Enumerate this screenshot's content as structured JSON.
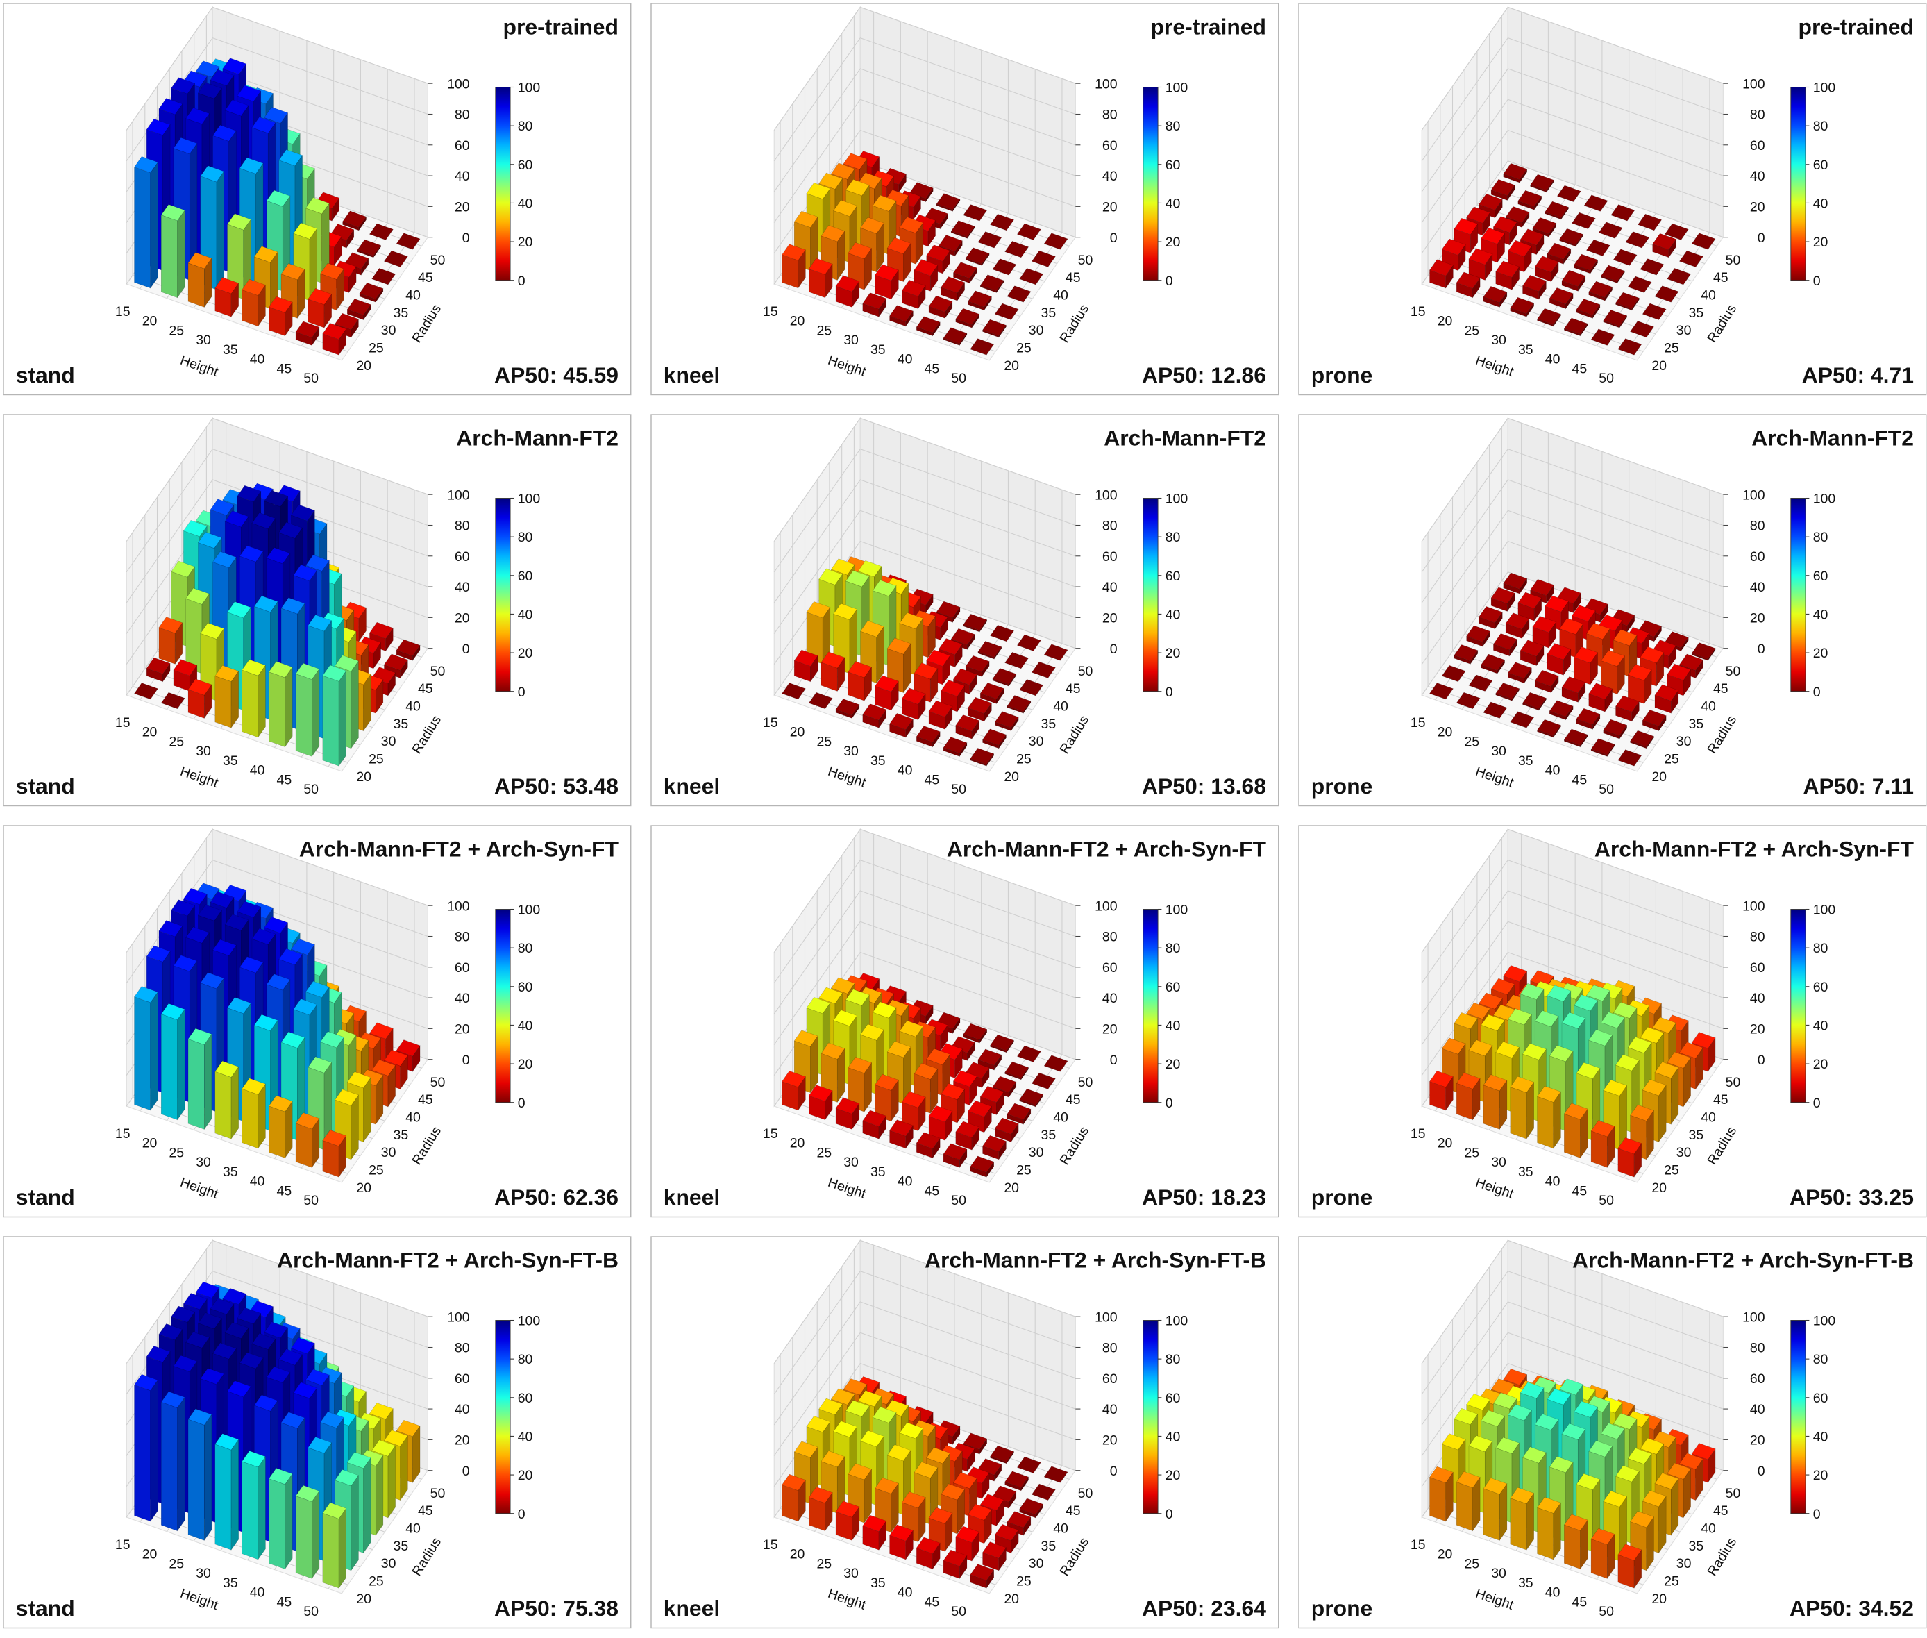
{
  "chart_data": [
    {
      "type": "bar3d",
      "title": "pre-trained",
      "subtitle": "stand",
      "annotation": "AP50: 45.59",
      "x_label": "Height",
      "y_label": "Radius",
      "x": [
        15,
        20,
        25,
        30,
        35,
        40,
        45,
        50
      ],
      "y": [
        20,
        25,
        30,
        35,
        40,
        45,
        50
      ],
      "zlim": [
        0,
        100
      ],
      "zticks": [
        0,
        20,
        40,
        60,
        80,
        100
      ],
      "colormap": "jet_r",
      "colorbar_ticks": [
        0,
        20,
        40,
        60,
        80,
        100
      ],
      "values": [
        [
          75,
          88,
          90,
          92,
          85,
          80,
          70
        ],
        [
          50,
          82,
          90,
          95,
          92,
          88,
          60
        ],
        [
          25,
          70,
          85,
          90,
          88,
          75,
          40
        ],
        [
          15,
          45,
          70,
          85,
          80,
          55,
          20
        ],
        [
          20,
          30,
          55,
          70,
          50,
          15,
          8
        ],
        [
          15,
          25,
          40,
          45,
          12,
          5,
          2
        ],
        [
          5,
          15,
          20,
          10,
          4,
          1,
          0
        ],
        [
          10,
          5,
          3,
          2,
          0,
          0,
          0
        ]
      ]
    },
    {
      "type": "bar3d",
      "title": "pre-trained",
      "subtitle": "kneel",
      "annotation": "AP50: 12.86",
      "x_label": "Height",
      "y_label": "Radius",
      "x": [
        15,
        20,
        25,
        30,
        35,
        40,
        45,
        50
      ],
      "y": [
        20,
        25,
        30,
        35,
        40,
        45,
        50
      ],
      "zlim": [
        0,
        100
      ],
      "zticks": [
        0,
        20,
        40,
        60,
        80,
        100
      ],
      "colormap": "jet_r",
      "colorbar_ticks": [
        0,
        20,
        40,
        60,
        80,
        100
      ],
      "values": [
        [
          18,
          28,
          35,
          30,
          25,
          20,
          10
        ],
        [
          15,
          25,
          30,
          32,
          25,
          15,
          5
        ],
        [
          10,
          20,
          25,
          28,
          20,
          8,
          2
        ],
        [
          5,
          12,
          18,
          20,
          10,
          3,
          1
        ],
        [
          3,
          8,
          10,
          8,
          3,
          1,
          0
        ],
        [
          2,
          4,
          5,
          3,
          1,
          0,
          0
        ],
        [
          1,
          2,
          2,
          1,
          0,
          0,
          0
        ],
        [
          0,
          1,
          0,
          0,
          0,
          0,
          0
        ]
      ]
    },
    {
      "type": "bar3d",
      "title": "pre-trained",
      "subtitle": "prone",
      "annotation": "AP50: 4.71",
      "x_label": "Height",
      "y_label": "Radius",
      "x": [
        15,
        20,
        25,
        30,
        35,
        40,
        45,
        50
      ],
      "y": [
        20,
        25,
        30,
        35,
        40,
        45,
        50
      ],
      "zlim": [
        0,
        100
      ],
      "zticks": [
        0,
        20,
        40,
        60,
        80,
        100
      ],
      "colormap": "jet_r",
      "colorbar_ticks": [
        0,
        20,
        40,
        60,
        80,
        100
      ],
      "values": [
        [
          8,
          10,
          12,
          8,
          5,
          3,
          2
        ],
        [
          6,
          10,
          12,
          8,
          3,
          2,
          1
        ],
        [
          3,
          8,
          10,
          6,
          2,
          1,
          0
        ],
        [
          2,
          5,
          6,
          3,
          1,
          0,
          0
        ],
        [
          1,
          3,
          3,
          2,
          0,
          0,
          0
        ],
        [
          1,
          2,
          2,
          1,
          0,
          0,
          0
        ],
        [
          0,
          1,
          1,
          0,
          0,
          5,
          0
        ],
        [
          0,
          0,
          0,
          0,
          0,
          0,
          0
        ]
      ]
    },
    {
      "type": "bar3d",
      "title": "Arch-Mann-FT2",
      "subtitle": "stand",
      "annotation": "AP50: 53.48",
      "x_label": "Height",
      "y_label": "Radius",
      "x": [
        15,
        20,
        25,
        30,
        35,
        40,
        45,
        50
      ],
      "y": [
        20,
        25,
        30,
        35,
        40,
        45,
        50
      ],
      "zlim": [
        0,
        100
      ],
      "zticks": [
        0,
        20,
        40,
        60,
        80,
        100
      ],
      "colormap": "jet_r",
      "colorbar_ticks": [
        0,
        20,
        40,
        60,
        80,
        100
      ],
      "values": [
        [
          0,
          5,
          20,
          45,
          60,
          55,
          40
        ],
        [
          0,
          10,
          45,
          70,
          80,
          75,
          50
        ],
        [
          15,
          40,
          75,
          90,
          95,
          85,
          55
        ],
        [
          30,
          60,
          85,
          95,
          98,
          90,
          60
        ],
        [
          40,
          70,
          90,
          95,
          95,
          75,
          35
        ],
        [
          45,
          75,
          85,
          80,
          60,
          25,
          15
        ],
        [
          50,
          70,
          60,
          40,
          20,
          10,
          8
        ],
        [
          55,
          50,
          30,
          15,
          8,
          5,
          3
        ]
      ]
    },
    {
      "type": "bar3d",
      "title": "Arch-Mann-FT2",
      "subtitle": "kneel",
      "annotation": "AP50: 13.68",
      "x_label": "Height",
      "y_label": "Radius",
      "x": [
        15,
        20,
        25,
        30,
        35,
        40,
        45,
        50
      ],
      "y": [
        20,
        25,
        30,
        35,
        40,
        45,
        50
      ],
      "zlim": [
        0,
        100
      ],
      "zticks": [
        0,
        20,
        40,
        60,
        80,
        100
      ],
      "colormap": "jet_r",
      "colorbar_ticks": [
        0,
        20,
        40,
        60,
        80,
        100
      ],
      "values": [
        [
          0,
          10,
          30,
          40,
          35,
          25,
          10
        ],
        [
          0,
          15,
          35,
          45,
          40,
          20,
          8
        ],
        [
          2,
          15,
          30,
          45,
          35,
          15,
          5
        ],
        [
          5,
          12,
          25,
          30,
          20,
          8,
          3
        ],
        [
          5,
          10,
          15,
          12,
          8,
          3,
          1
        ],
        [
          3,
          8,
          10,
          6,
          3,
          1,
          0
        ],
        [
          2,
          5,
          5,
          3,
          1,
          0,
          0
        ],
        [
          1,
          2,
          2,
          1,
          0,
          0,
          0
        ]
      ]
    },
    {
      "type": "bar3d",
      "title": "Arch-Mann-FT2",
      "subtitle": "prone",
      "annotation": "AP50: 7.11",
      "x_label": "Height",
      "y_label": "Radius",
      "x": [
        15,
        20,
        25,
        30,
        35,
        40,
        45,
        50
      ],
      "y": [
        20,
        25,
        30,
        35,
        40,
        45,
        50
      ],
      "zlim": [
        0,
        100
      ],
      "zticks": [
        0,
        20,
        40,
        60,
        80,
        100
      ],
      "colormap": "jet_r",
      "colorbar_ticks": [
        0,
        20,
        40,
        60,
        80,
        100
      ],
      "values": [
        [
          0,
          0,
          2,
          3,
          4,
          5,
          3
        ],
        [
          0,
          0,
          2,
          4,
          6,
          8,
          5
        ],
        [
          0,
          1,
          3,
          6,
          10,
          12,
          6
        ],
        [
          0,
          1,
          4,
          10,
          15,
          12,
          5
        ],
        [
          1,
          2,
          6,
          14,
          18,
          12,
          4
        ],
        [
          1,
          3,
          8,
          18,
          20,
          10,
          3
        ],
        [
          1,
          2,
          6,
          15,
          15,
          8,
          2
        ],
        [
          0,
          1,
          3,
          8,
          10,
          5,
          1
        ]
      ]
    },
    {
      "type": "bar3d",
      "title": "Arch-Mann-FT2 + Arch-Syn-FT",
      "subtitle": "stand",
      "annotation": "AP50: 62.36",
      "x_label": "Height",
      "y_label": "Radius",
      "x": [
        15,
        20,
        25,
        30,
        35,
        40,
        45,
        50
      ],
      "y": [
        20,
        25,
        30,
        35,
        40,
        45,
        50
      ],
      "zlim": [
        0,
        100
      ],
      "zticks": [
        0,
        20,
        40,
        60,
        80,
        100
      ],
      "colormap": "jet_r",
      "colorbar_ticks": [
        0,
        20,
        40,
        60,
        80,
        100
      ],
      "values": [
        [
          70,
          85,
          90,
          92,
          88,
          80,
          65
        ],
        [
          65,
          85,
          92,
          95,
          92,
          85,
          65
        ],
        [
          55,
          80,
          90,
          95,
          92,
          80,
          55
        ],
        [
          40,
          70,
          85,
          92,
          88,
          70,
          40
        ],
        [
          35,
          65,
          80,
          85,
          80,
          55,
          30
        ],
        [
          30,
          60,
          70,
          70,
          55,
          30,
          20
        ],
        [
          25,
          50,
          55,
          45,
          30,
          20,
          15
        ],
        [
          20,
          35,
          35,
          25,
          20,
          15,
          10
        ]
      ]
    },
    {
      "type": "bar3d",
      "title": "Arch-Mann-FT2 + Arch-Syn-FT",
      "subtitle": "kneel",
      "annotation": "AP50: 18.23",
      "x_label": "Height",
      "y_label": "Radius",
      "x": [
        15,
        20,
        25,
        30,
        35,
        40,
        45,
        50
      ],
      "y": [
        20,
        25,
        30,
        35,
        40,
        45,
        50
      ],
      "zlim": [
        0,
        100
      ],
      "zticks": [
        0,
        20,
        40,
        60,
        80,
        100
      ],
      "colormap": "jet_r",
      "colorbar_ticks": [
        0,
        20,
        40,
        60,
        80,
        100
      ],
      "values": [
        [
          15,
          30,
          40,
          35,
          30,
          20,
          10
        ],
        [
          12,
          28,
          38,
          40,
          30,
          18,
          8
        ],
        [
          10,
          25,
          35,
          38,
          28,
          15,
          5
        ],
        [
          8,
          20,
          30,
          32,
          20,
          10,
          3
        ],
        [
          8,
          15,
          22,
          20,
          12,
          5,
          2
        ],
        [
          6,
          12,
          15,
          12,
          6,
          3,
          1
        ],
        [
          5,
          8,
          10,
          8,
          3,
          1,
          0
        ],
        [
          3,
          5,
          5,
          3,
          1,
          0,
          0
        ]
      ]
    },
    {
      "type": "bar3d",
      "title": "Arch-Mann-FT2 + Arch-Syn-FT",
      "subtitle": "prone",
      "annotation": "AP50: 33.25",
      "x_label": "Height",
      "y_label": "Radius",
      "x": [
        15,
        20,
        25,
        30,
        35,
        40,
        45,
        50
      ],
      "y": [
        20,
        25,
        30,
        35,
        40,
        45,
        50
      ],
      "zlim": [
        0,
        100
      ],
      "zticks": [
        0,
        20,
        40,
        60,
        80,
        100
      ],
      "colormap": "jet_r",
      "colorbar_ticks": [
        0,
        20,
        40,
        60,
        80,
        100
      ],
      "values": [
        [
          15,
          25,
          30,
          25,
          20,
          18,
          15
        ],
        [
          20,
          30,
          35,
          30,
          25,
          20,
          18
        ],
        [
          25,
          35,
          45,
          50,
          40,
          30,
          20
        ],
        [
          30,
          40,
          50,
          55,
          45,
          35,
          25
        ],
        [
          30,
          45,
          55,
          55,
          50,
          40,
          30
        ],
        [
          25,
          40,
          50,
          50,
          45,
          35,
          25
        ],
        [
          20,
          35,
          40,
          40,
          35,
          30,
          20
        ],
        [
          15,
          25,
          30,
          30,
          25,
          20,
          15
        ]
      ]
    },
    {
      "type": "bar3d",
      "title": "Arch-Mann-FT2 + Arch-Syn-FT-B",
      "subtitle": "stand",
      "annotation": "AP50: 75.38",
      "x_label": "Height",
      "y_label": "Radius",
      "x": [
        15,
        20,
        25,
        30,
        35,
        40,
        45,
        50
      ],
      "y": [
        20,
        25,
        30,
        35,
        40,
        45,
        50
      ],
      "zlim": [
        0,
        100
      ],
      "zticks": [
        0,
        20,
        40,
        60,
        80,
        100
      ],
      "colormap": "jet_r",
      "colorbar_ticks": [
        0,
        20,
        40,
        60,
        80,
        100
      ],
      "values": [
        [
          85,
          92,
          95,
          95,
          92,
          88,
          75
        ],
        [
          80,
          92,
          96,
          97,
          95,
          90,
          75
        ],
        [
          75,
          90,
          95,
          97,
          95,
          88,
          70
        ],
        [
          65,
          88,
          95,
          96,
          92,
          80,
          60
        ],
        [
          60,
          85,
          92,
          92,
          88,
          70,
          50
        ],
        [
          55,
          80,
          88,
          85,
          75,
          55,
          40
        ],
        [
          50,
          70,
          75,
          65,
          50,
          40,
          35
        ],
        [
          45,
          55,
          55,
          45,
          40,
          35,
          30
        ]
      ]
    },
    {
      "type": "bar3d",
      "title": "Arch-Mann-FT2 + Arch-Syn-FT-B",
      "subtitle": "kneel",
      "annotation": "AP50: 23.64",
      "x_label": "Height",
      "y_label": "Radius",
      "x": [
        15,
        20,
        25,
        30,
        35,
        40,
        45,
        50
      ],
      "y": [
        20,
        25,
        30,
        35,
        40,
        45,
        50
      ],
      "zlim": [
        0,
        100
      ],
      "zticks": [
        0,
        20,
        40,
        60,
        80,
        100
      ],
      "colormap": "jet_r",
      "colorbar_ticks": [
        0,
        20,
        40,
        60,
        80,
        100
      ],
      "values": [
        [
          20,
          30,
          35,
          35,
          30,
          25,
          15
        ],
        [
          18,
          30,
          38,
          40,
          35,
          25,
          12
        ],
        [
          15,
          28,
          38,
          42,
          35,
          20,
          8
        ],
        [
          12,
          25,
          35,
          38,
          28,
          15,
          5
        ],
        [
          12,
          22,
          30,
          28,
          18,
          8,
          3
        ],
        [
          10,
          18,
          22,
          18,
          10,
          4,
          1
        ],
        [
          8,
          12,
          15,
          10,
          4,
          2,
          0
        ],
        [
          5,
          8,
          8,
          5,
          2,
          0,
          0
        ]
      ]
    },
    {
      "type": "bar3d",
      "title": "Arch-Mann-FT2 + Arch-Syn-FT-B",
      "subtitle": "prone",
      "annotation": "AP50: 34.52",
      "x_label": "Height",
      "y_label": "Radius",
      "x": [
        15,
        20,
        25,
        30,
        35,
        40,
        45,
        50
      ],
      "y": [
        20,
        25,
        30,
        35,
        40,
        45,
        50
      ],
      "zlim": [
        0,
        100
      ],
      "zticks": [
        0,
        20,
        40,
        60,
        80,
        100
      ],
      "colormap": "jet_r",
      "colorbar_ticks": [
        0,
        20,
        40,
        60,
        80,
        100
      ],
      "values": [
        [
          25,
          35,
          40,
          38,
          30,
          25,
          20
        ],
        [
          28,
          40,
          45,
          45,
          38,
          30,
          22
        ],
        [
          30,
          45,
          55,
          58,
          50,
          35,
          25
        ],
        [
          30,
          45,
          55,
          60,
          55,
          40,
          28
        ],
        [
          30,
          45,
          55,
          58,
          50,
          38,
          25
        ],
        [
          25,
          40,
          50,
          50,
          45,
          35,
          22
        ],
        [
          22,
          35,
          40,
          40,
          35,
          28,
          18
        ],
        [
          18,
          28,
          30,
          30,
          25,
          20,
          15
        ]
      ]
    }
  ]
}
